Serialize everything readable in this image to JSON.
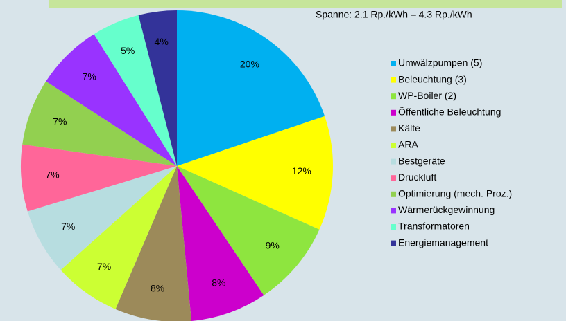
{
  "chart_data": {
    "type": "pie",
    "annotation": "Spanne: 2.1 Rp./kWh – 4.3 Rp./kWh",
    "categories": [
      "Umwälzpumpen (5)",
      "Beleuchtung (3)",
      "WP-Boiler (2)",
      "Öffentliche Beleuchtung",
      "Kälte",
      "ARA",
      "Bestgeräte",
      "Druckluft",
      "Optimierung (mech. Proz.)",
      "Wärmerückgewinnung",
      "Transformatoren",
      "Energiemanagement"
    ],
    "values": [
      20,
      12,
      9,
      8,
      8,
      7,
      7,
      7,
      7,
      7,
      5,
      4
    ],
    "value_labels": [
      "20%",
      "12%",
      "9%",
      "8%",
      "8%",
      "7%",
      "7%",
      "7%",
      "7%",
      "7%",
      "5%",
      "4%"
    ],
    "colors": [
      "#00b0f0",
      "#ffff00",
      "#8ee53f",
      "#cc00cc",
      "#9c8a5a",
      "#ccff33",
      "#b7dde0",
      "#ff6699",
      "#92d050",
      "#9933ff",
      "#66ffcc",
      "#333399"
    ],
    "legend": "right"
  }
}
